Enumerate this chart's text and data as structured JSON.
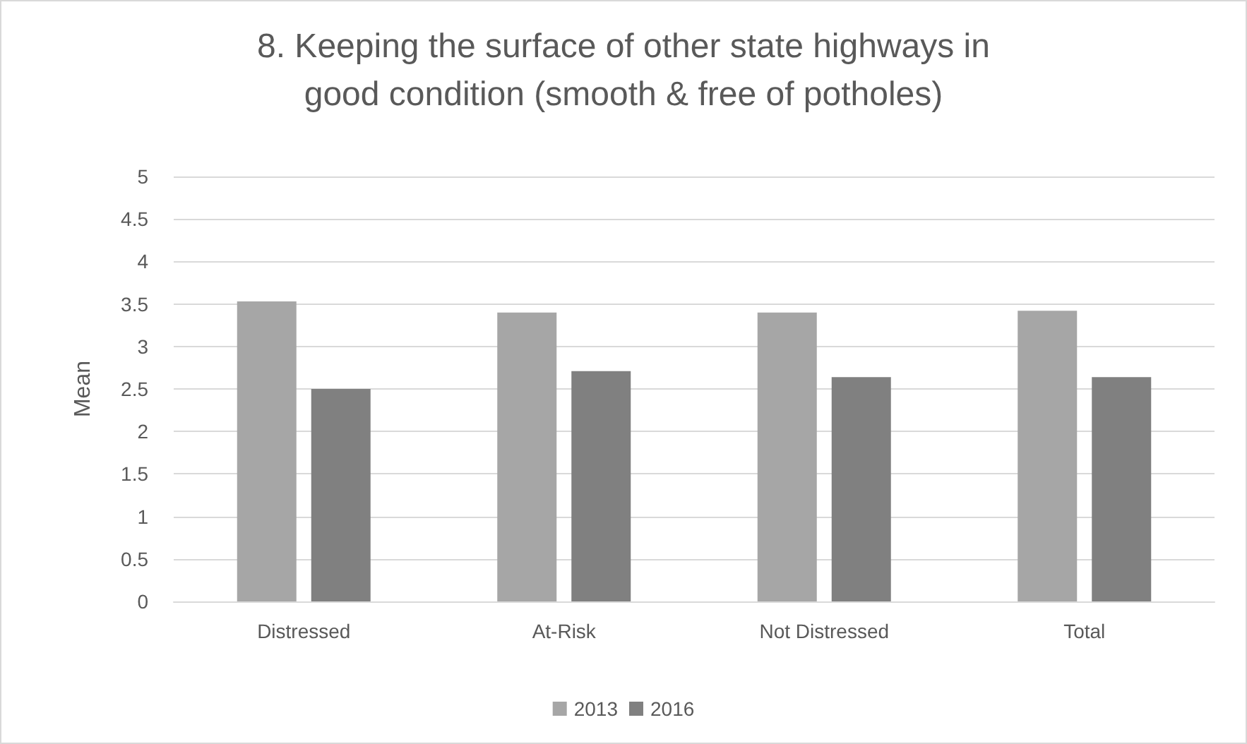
{
  "chart_data": {
    "type": "bar",
    "title": "8. Keeping the surface of other state highways in\ngood condition (smooth & free of potholes)",
    "ylabel": "Mean",
    "categories": [
      "Distressed",
      "At-Risk",
      "Not Distressed",
      "Total"
    ],
    "series": [
      {
        "name": "2013",
        "color": "#a6a6a6",
        "values": [
          3.53,
          3.4,
          3.4,
          3.42
        ]
      },
      {
        "name": "2016",
        "color": "#808080",
        "values": [
          2.5,
          2.71,
          2.64,
          2.64
        ]
      }
    ],
    "ylim": [
      0,
      5
    ],
    "yticks": [
      0,
      0.5,
      1,
      1.5,
      2,
      2.5,
      3,
      3.5,
      4,
      4.5,
      5
    ],
    "grid": "y",
    "legend": "bottom"
  }
}
